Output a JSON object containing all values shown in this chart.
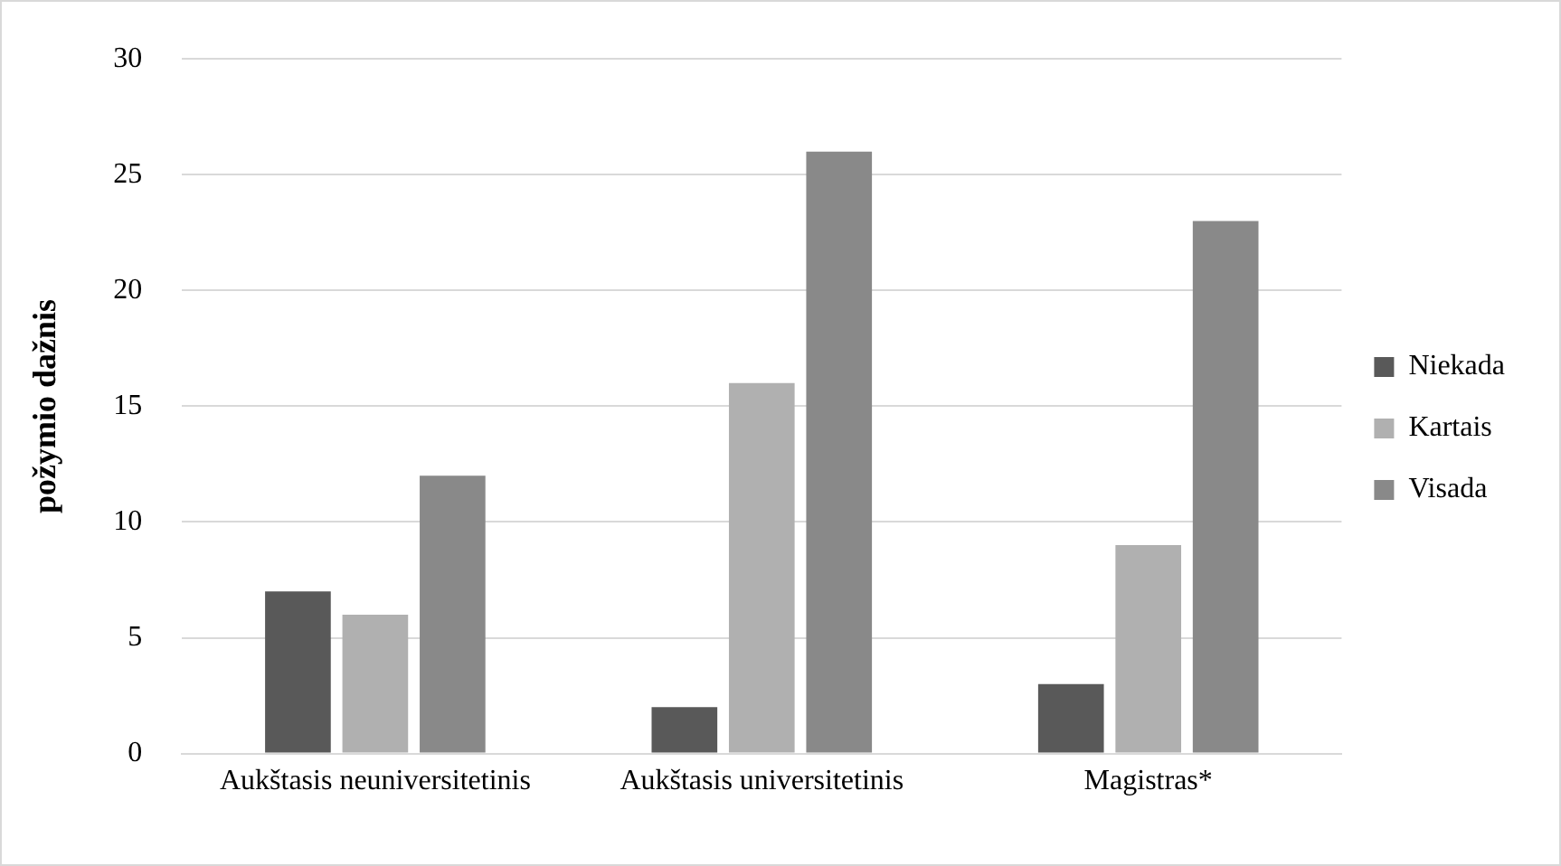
{
  "chart_data": {
    "type": "bar",
    "ylabel": "požymio dažnis",
    "categories": [
      "Aukštasis neuniversitetinis",
      "Aukštasis universitetinis",
      "Magistras*"
    ],
    "series": [
      {
        "name": "Niekada",
        "color": "#595959",
        "values": [
          7,
          2,
          3
        ]
      },
      {
        "name": "Kartais",
        "color": "#b0b0b0",
        "values": [
          6,
          16,
          9
        ]
      },
      {
        "name": "Visada",
        "color": "#898989",
        "values": [
          12,
          26,
          23
        ]
      }
    ],
    "ylim": [
      0,
      30
    ],
    "yticks": [
      0,
      5,
      10,
      15,
      20,
      25,
      30
    ],
    "grid": "y",
    "legend": "right"
  }
}
